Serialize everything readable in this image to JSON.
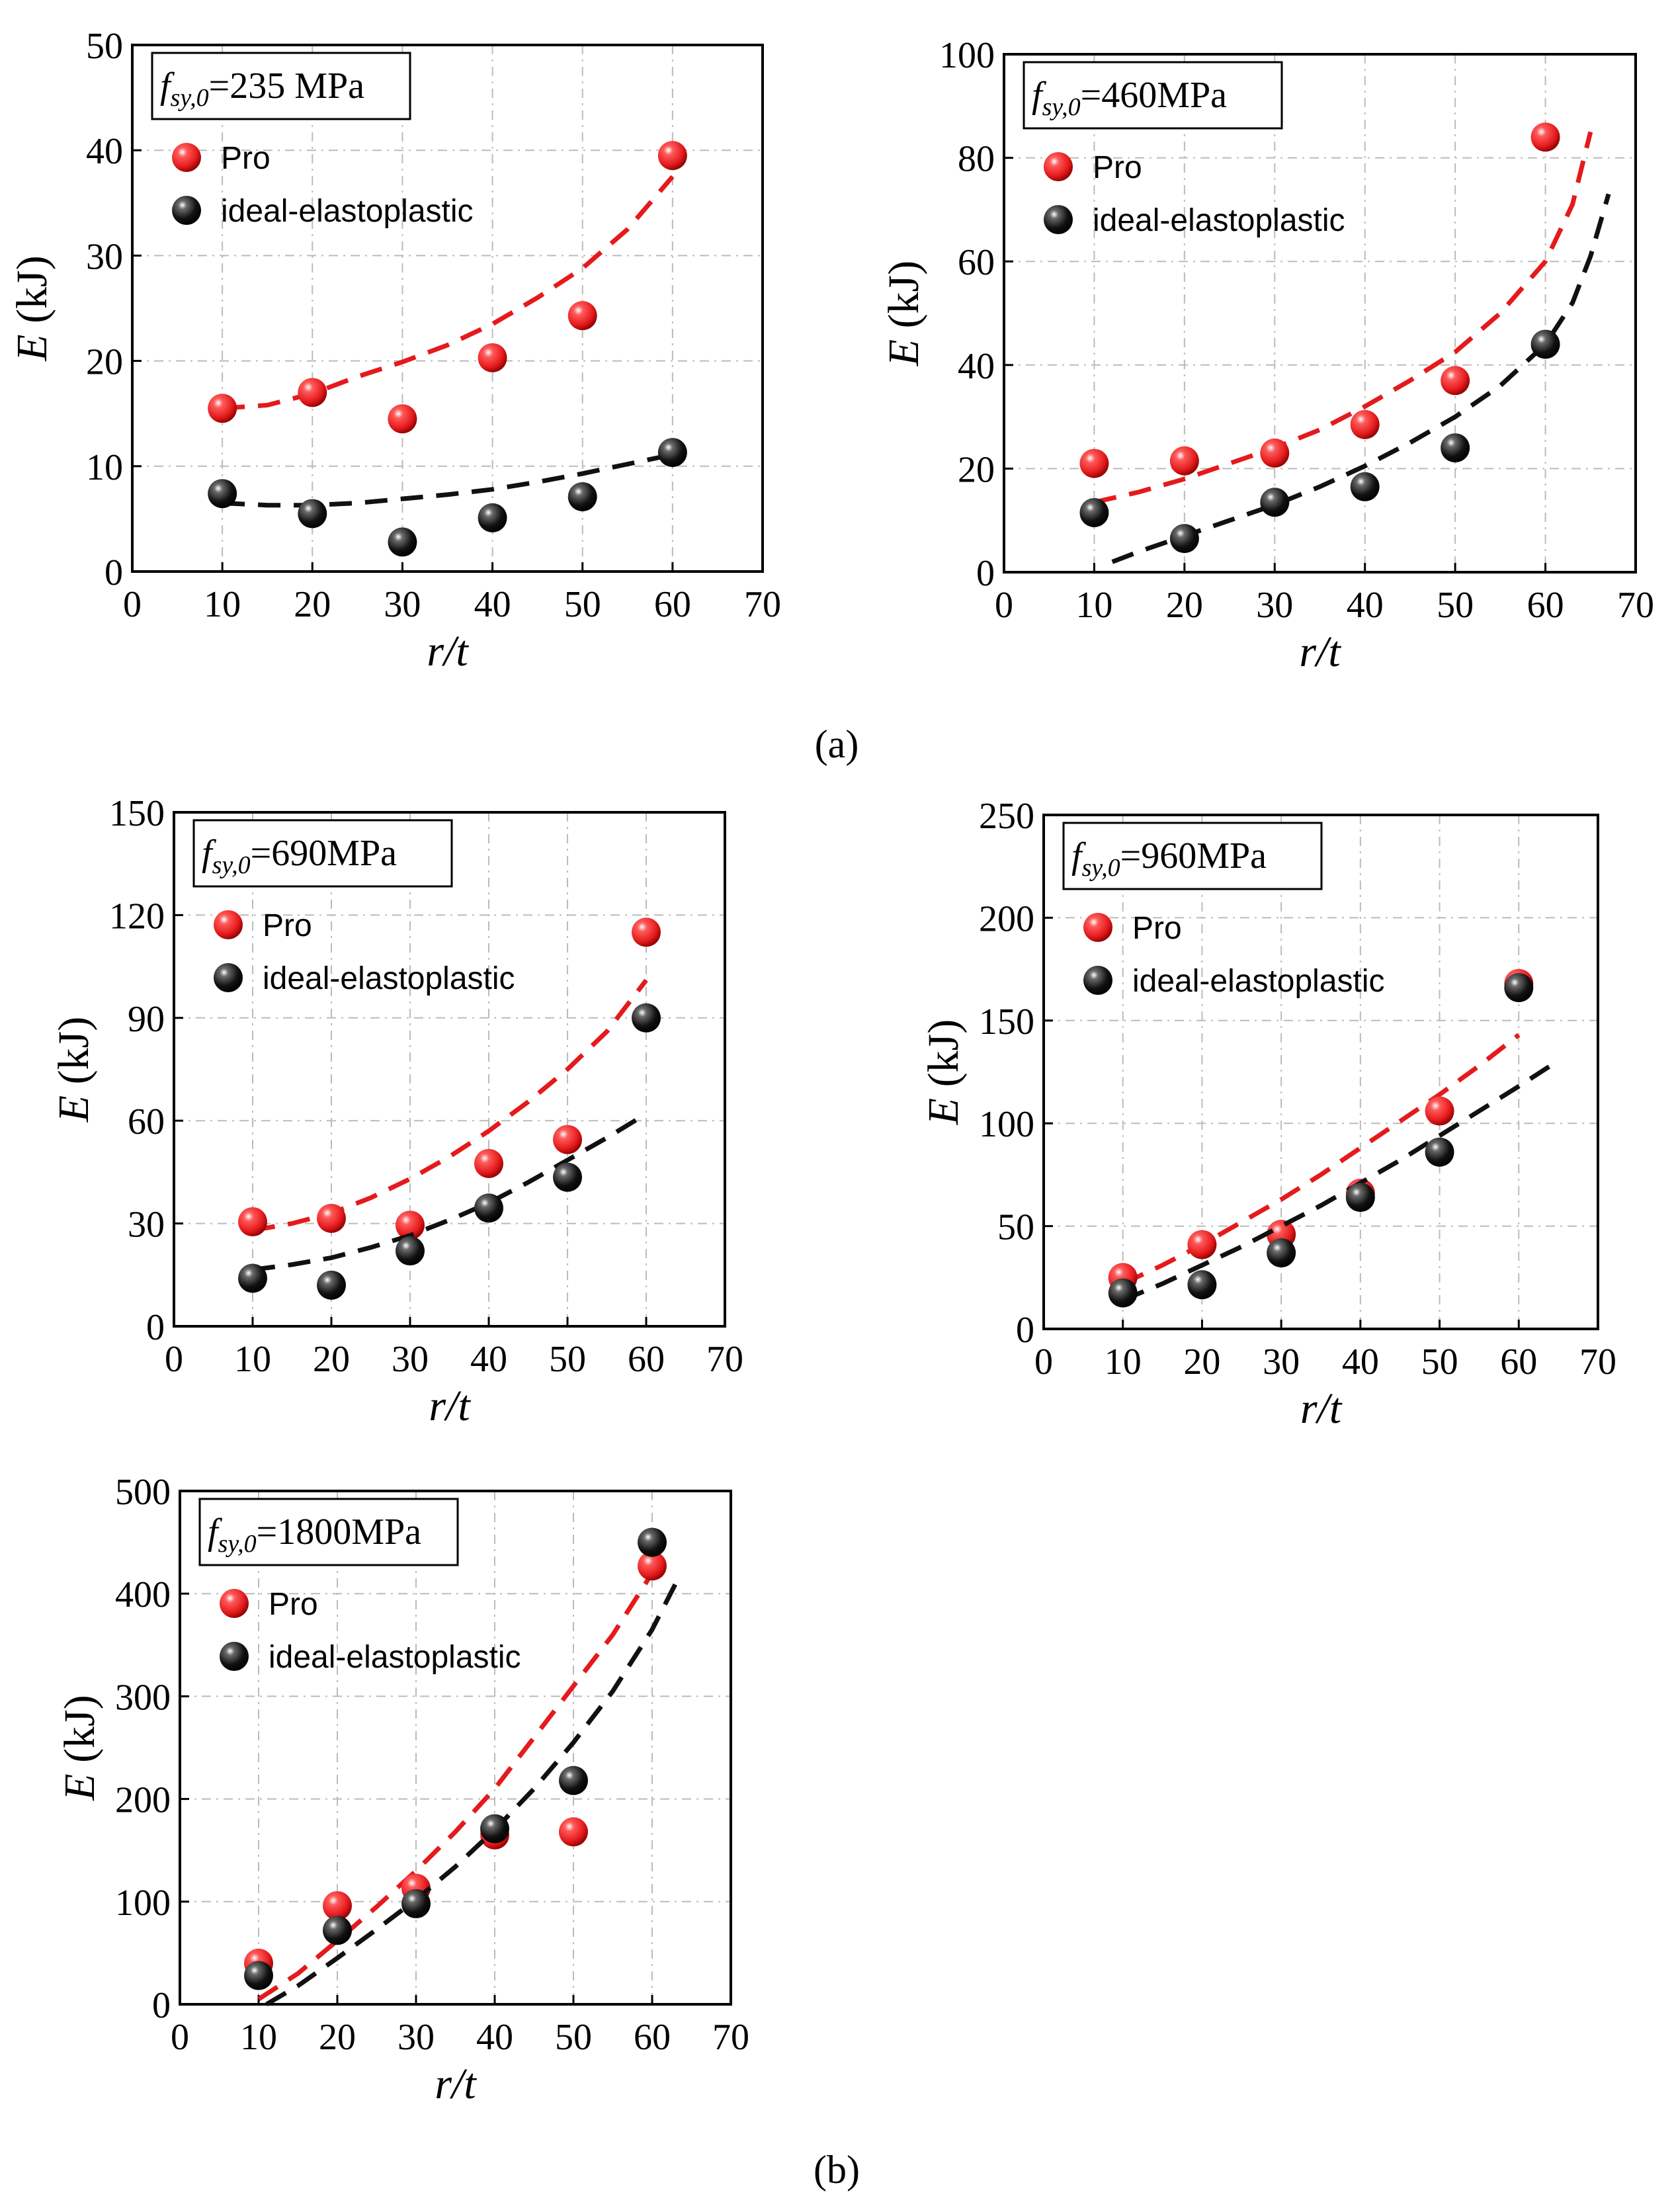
{
  "figure": {
    "caption_a": "(a)",
    "caption_b": "(b)"
  },
  "colors": {
    "pro": "#e41a1c",
    "ideal": "#111111",
    "grid": "#bbbbbb"
  },
  "chart_data": [
    {
      "type": "scatter",
      "id": "panel-235",
      "title_prefix": "f",
      "title_sub": "sy,0",
      "title_value": "=235 MPa",
      "xlabel": "r/t",
      "ylabel_main": "E",
      "ylabel_unit": " (kJ)",
      "xlim": [
        0,
        70
      ],
      "ylim": [
        0,
        50
      ],
      "xticks": [
        "0",
        "10",
        "20",
        "30",
        "40",
        "50",
        "60",
        "70"
      ],
      "yticks": [
        "0",
        "10",
        "20",
        "30",
        "40",
        "50"
      ],
      "series": [
        {
          "name": "Pro",
          "x": [
            10,
            20,
            30,
            40,
            50,
            60
          ],
          "values": [
            15.5,
            17,
            14.5,
            20.3,
            24.3,
            39.5
          ],
          "fit_x": [
            10,
            15,
            20,
            25,
            30,
            35,
            40,
            45,
            50,
            55,
            60
          ],
          "fit_y": [
            15.5,
            15.8,
            16.9,
            18.5,
            19.9,
            21.5,
            23.5,
            26,
            28.8,
            32.5,
            37.5
          ]
        },
        {
          "name": "ideal-elastoplastic",
          "x": [
            10,
            20,
            30,
            40,
            50,
            60
          ],
          "values": [
            7.4,
            5.5,
            2.8,
            5.1,
            7.1,
            11.3
          ],
          "fit_x": [
            10,
            15,
            20,
            25,
            30,
            35,
            40,
            45,
            50,
            55,
            60
          ],
          "fit_y": [
            6.5,
            6.3,
            6.3,
            6.5,
            6.9,
            7.3,
            7.8,
            8.5,
            9.3,
            10.2,
            11.1
          ]
        }
      ]
    },
    {
      "type": "scatter",
      "id": "panel-460",
      "title_prefix": "f",
      "title_sub": "sy,0",
      "title_value": "=460MPa",
      "xlabel": "r/t",
      "ylabel_main": "E",
      "ylabel_unit": " (kJ)",
      "xlim": [
        0,
        70
      ],
      "ylim": [
        0,
        100
      ],
      "xticks": [
        "0",
        "10",
        "20",
        "30",
        "40",
        "50",
        "60",
        "70"
      ],
      "yticks": [
        "0",
        "20",
        "40",
        "60",
        "80",
        "100"
      ],
      "series": [
        {
          "name": "Pro",
          "x": [
            10,
            20,
            30,
            40,
            50,
            60
          ],
          "values": [
            21,
            21.5,
            23,
            28.5,
            37,
            84
          ],
          "fit_x": [
            10,
            15,
            20,
            25,
            30,
            35,
            40,
            45,
            50,
            55,
            60,
            63,
            65
          ],
          "fit_y": [
            13.5,
            15.5,
            18,
            21,
            24,
            27.5,
            32,
            37,
            42.5,
            50,
            60,
            71,
            85
          ]
        },
        {
          "name": "ideal-elastoplastic",
          "x": [
            10,
            20,
            30,
            40,
            50,
            60
          ],
          "values": [
            11.5,
            6.5,
            13.5,
            16.5,
            24,
            44
          ],
          "fit_x": [
            12,
            15,
            20,
            25,
            30,
            35,
            40,
            45,
            50,
            55,
            60,
            63,
            65,
            67
          ],
          "fit_y": [
            2,
            4,
            7,
            10,
            13,
            16.5,
            20.5,
            25,
            30,
            36,
            44,
            52,
            61,
            73
          ]
        }
      ]
    },
    {
      "type": "scatter",
      "id": "panel-690",
      "title_prefix": "f",
      "title_sub": "sy,0",
      "title_value": "=690MPa",
      "xlabel": "r/t",
      "ylabel_main": "E",
      "ylabel_unit": " (kJ)",
      "xlim": [
        0,
        70
      ],
      "ylim": [
        0,
        150
      ],
      "xticks": [
        "0",
        "10",
        "20",
        "30",
        "40",
        "50",
        "60",
        "70"
      ],
      "yticks": [
        "0",
        "30",
        "60",
        "90",
        "120",
        "150"
      ],
      "series": [
        {
          "name": "Pro",
          "x": [
            10,
            20,
            30,
            40,
            50,
            60
          ],
          "values": [
            30.5,
            31.5,
            29.5,
            47.5,
            54.5,
            115
          ],
          "fit_x": [
            10,
            15,
            20,
            25,
            30,
            35,
            40,
            45,
            50,
            55,
            60
          ],
          "fit_y": [
            28,
            30,
            33,
            37.5,
            43,
            49.5,
            57,
            65.5,
            75,
            86,
            101
          ]
        },
        {
          "name": "ideal-elastoplastic",
          "x": [
            10,
            20,
            30,
            40,
            50,
            60
          ],
          "values": [
            14,
            12,
            22,
            34.5,
            43.5,
            90
          ],
          "fit_x": [
            10,
            15,
            20,
            25,
            30,
            35,
            40,
            45,
            50,
            55,
            60
          ],
          "fit_y": [
            16.5,
            18,
            20,
            23,
            26.5,
            31,
            36,
            42,
            48.5,
            55,
            62
          ]
        }
      ]
    },
    {
      "type": "scatter",
      "id": "panel-960",
      "title_prefix": "f",
      "title_sub": "sy,0",
      "title_value": "=960MPa",
      "xlabel": "r/t",
      "ylabel_main": "E",
      "ylabel_unit": " (kJ)",
      "xlim": [
        0,
        70
      ],
      "ylim": [
        0,
        250
      ],
      "xticks": [
        "0",
        "10",
        "20",
        "30",
        "40",
        "50",
        "60",
        "70"
      ],
      "yticks": [
        "0",
        "50",
        "100",
        "150",
        "200",
        "250"
      ],
      "series": [
        {
          "name": "Pro",
          "x": [
            10,
            20,
            30,
            40,
            50,
            60
          ],
          "values": [
            25,
            41,
            46,
            66,
            106,
            168
          ],
          "fit_x": [
            10,
            15,
            20,
            25,
            30,
            35,
            40,
            45,
            50,
            55,
            60
          ],
          "fit_y": [
            22,
            31,
            41,
            52,
            63,
            75,
            88,
            101,
            114,
            128,
            143
          ]
        },
        {
          "name": "ideal-elastoplastic",
          "x": [
            10,
            20,
            30,
            40,
            50,
            60
          ],
          "values": [
            17.5,
            21.5,
            37,
            64,
            86,
            166
          ],
          "fit_x": [
            10,
            15,
            20,
            25,
            30,
            35,
            40,
            45,
            50,
            55,
            60,
            64
          ],
          "fit_y": [
            14,
            22,
            31,
            40,
            50,
            60,
            71,
            82,
            94,
            106,
            118,
            128
          ]
        }
      ]
    },
    {
      "type": "scatter",
      "id": "panel-1800",
      "title_prefix": "f",
      "title_sub": "sy,0",
      "title_value": "=1800MPa",
      "xlabel": "r/t",
      "ylabel_main": "E",
      "ylabel_unit": " (kJ)",
      "xlim": [
        0,
        70
      ],
      "ylim": [
        0,
        500
      ],
      "xticks": [
        "0",
        "10",
        "20",
        "30",
        "40",
        "50",
        "60",
        "70"
      ],
      "yticks": [
        "0",
        "100",
        "200",
        "300",
        "400",
        "500"
      ],
      "series": [
        {
          "name": "Pro",
          "x": [
            10,
            20,
            30,
            40,
            50,
            60
          ],
          "values": [
            40,
            96,
            113,
            165,
            168,
            427
          ],
          "fit_x": [
            10,
            15,
            20,
            25,
            30,
            35,
            40,
            45,
            50,
            55,
            60
          ],
          "fit_y": [
            5,
            30,
            62,
            95,
            130,
            168,
            210,
            260,
            310,
            360,
            420
          ]
        },
        {
          "name": "ideal-elastoplastic",
          "x": [
            10,
            20,
            30,
            40,
            50,
            60
          ],
          "values": [
            28,
            72,
            98,
            171,
            218,
            450
          ],
          "fit_x": [
            11,
            15,
            20,
            25,
            30,
            35,
            40,
            45,
            50,
            55,
            60,
            63
          ],
          "fit_y": [
            0,
            18,
            45,
            73,
            102,
            134,
            170,
            210,
            255,
            305,
            365,
            410
          ]
        }
      ]
    }
  ]
}
